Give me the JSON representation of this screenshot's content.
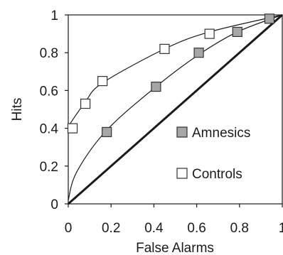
{
  "chart_data": {
    "type": "scatter",
    "xlabel": "False Alarms",
    "ylabel": "Hits",
    "xlim": [
      0,
      1
    ],
    "ylim": [
      0,
      1
    ],
    "x_ticks": [
      "0",
      "0.2",
      "0.4",
      "0.6",
      "0.8",
      "1"
    ],
    "y_ticks": [
      "0",
      "0.2",
      "0.4",
      "0.6",
      "0.8",
      "1"
    ],
    "grid": false,
    "legend_position": "bottom-right",
    "series": [
      {
        "name": "Amnesics",
        "marker": "filled-square",
        "color": "#a6a6a6",
        "points": [
          [
            0.18,
            0.38
          ],
          [
            0.41,
            0.62
          ],
          [
            0.61,
            0.8
          ],
          [
            0.79,
            0.91
          ],
          [
            0.94,
            0.98
          ]
        ]
      },
      {
        "name": "Controls",
        "marker": "open-square",
        "color": "#ffffff",
        "points": [
          [
            0.02,
            0.4
          ],
          [
            0.08,
            0.53
          ],
          [
            0.16,
            0.65
          ],
          [
            0.45,
            0.82
          ],
          [
            0.66,
            0.9
          ]
        ]
      }
    ],
    "chance_line": [
      [
        0,
        0
      ],
      [
        1,
        1
      ]
    ]
  }
}
